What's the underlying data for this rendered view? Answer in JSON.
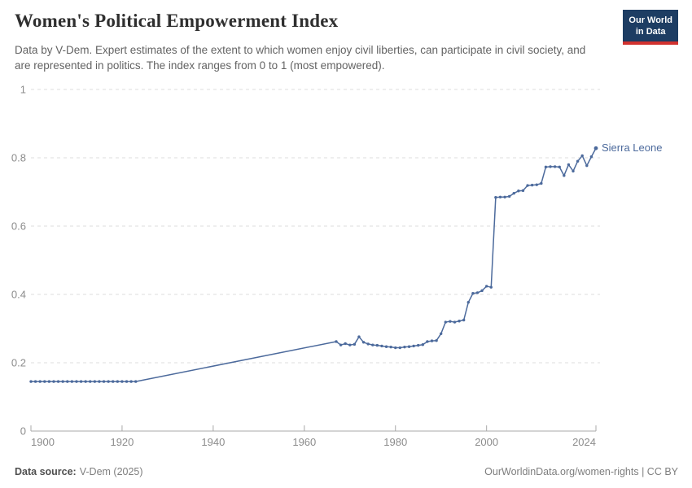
{
  "header": {
    "title": "Women's Political Empowerment Index",
    "subtitle": "Data by V-Dem. Expert estimates of the extent to which women enjoy civil liberties, can participate in civil society, and are represented in politics. The index ranges from 0 to 1 (most empowered).",
    "logo": {
      "line1": "Our World",
      "line2": "in Data"
    }
  },
  "footer": {
    "source_label": "Data source:",
    "source_value": "V-Dem (2025)",
    "right_text": "OurWorldinData.org/women-rights | CC BY"
  },
  "colors": {
    "line": "#4C6A9C",
    "end_label": "#4C6A9C",
    "grid": "#dcdcdc",
    "axis": "#a8a8a8",
    "tick_label": "#8c8c8c",
    "logo_bg": "#1d3d63",
    "logo_stripe": "#d1322f"
  },
  "chart_data": {
    "type": "line",
    "title": "Women's Political Empowerment Index",
    "xlabel": "",
    "ylabel": "",
    "xlim": [
      1900,
      2024
    ],
    "ylim": [
      0,
      1
    ],
    "x_ticks": [
      1900,
      1920,
      1940,
      1960,
      1980,
      2000,
      2024
    ],
    "y_ticks": [
      0,
      0.2,
      0.4,
      0.6,
      0.8,
      1
    ],
    "grid": true,
    "legend_position": "end-of-line-label",
    "series": [
      {
        "name": "Sierra Leone",
        "points": [
          [
            1900,
            0.145
          ],
          [
            1901,
            0.145
          ],
          [
            1902,
            0.145
          ],
          [
            1903,
            0.145
          ],
          [
            1904,
            0.145
          ],
          [
            1905,
            0.145
          ],
          [
            1906,
            0.145
          ],
          [
            1907,
            0.145
          ],
          [
            1908,
            0.145
          ],
          [
            1909,
            0.145
          ],
          [
            1910,
            0.145
          ],
          [
            1911,
            0.145
          ],
          [
            1912,
            0.145
          ],
          [
            1913,
            0.145
          ],
          [
            1914,
            0.145
          ],
          [
            1915,
            0.145
          ],
          [
            1916,
            0.145
          ],
          [
            1917,
            0.145
          ],
          [
            1918,
            0.145
          ],
          [
            1919,
            0.145
          ],
          [
            1920,
            0.145
          ],
          [
            1921,
            0.145
          ],
          [
            1922,
            0.145
          ],
          [
            1923,
            0.145
          ],
          [
            1967,
            0.262
          ],
          [
            1968,
            0.252
          ],
          [
            1969,
            0.256
          ],
          [
            1970,
            0.252
          ],
          [
            1971,
            0.254
          ],
          [
            1972,
            0.276
          ],
          [
            1973,
            0.26
          ],
          [
            1974,
            0.255
          ],
          [
            1975,
            0.252
          ],
          [
            1976,
            0.251
          ],
          [
            1977,
            0.249
          ],
          [
            1978,
            0.247
          ],
          [
            1979,
            0.246
          ],
          [
            1980,
            0.244
          ],
          [
            1981,
            0.244
          ],
          [
            1982,
            0.246
          ],
          [
            1983,
            0.247
          ],
          [
            1984,
            0.249
          ],
          [
            1985,
            0.251
          ],
          [
            1986,
            0.253
          ],
          [
            1987,
            0.262
          ],
          [
            1988,
            0.264
          ],
          [
            1989,
            0.265
          ],
          [
            1990,
            0.285
          ],
          [
            1991,
            0.319
          ],
          [
            1992,
            0.321
          ],
          [
            1993,
            0.319
          ],
          [
            1994,
            0.322
          ],
          [
            1995,
            0.325
          ],
          [
            1996,
            0.377
          ],
          [
            1997,
            0.403
          ],
          [
            1998,
            0.405
          ],
          [
            1999,
            0.411
          ],
          [
            2000,
            0.424
          ],
          [
            2001,
            0.421
          ],
          [
            2002,
            0.684
          ],
          [
            2003,
            0.685
          ],
          [
            2004,
            0.685
          ],
          [
            2005,
            0.687
          ],
          [
            2006,
            0.696
          ],
          [
            2007,
            0.703
          ],
          [
            2008,
            0.704
          ],
          [
            2009,
            0.719
          ],
          [
            2010,
            0.72
          ],
          [
            2011,
            0.721
          ],
          [
            2012,
            0.725
          ],
          [
            2013,
            0.773
          ],
          [
            2014,
            0.774
          ],
          [
            2015,
            0.774
          ],
          [
            2016,
            0.773
          ],
          [
            2017,
            0.748
          ],
          [
            2018,
            0.78
          ],
          [
            2019,
            0.761
          ],
          [
            2020,
            0.79
          ],
          [
            2021,
            0.806
          ],
          [
            2022,
            0.777
          ],
          [
            2023,
            0.803
          ],
          [
            2024,
            0.828
          ]
        ]
      }
    ]
  }
}
